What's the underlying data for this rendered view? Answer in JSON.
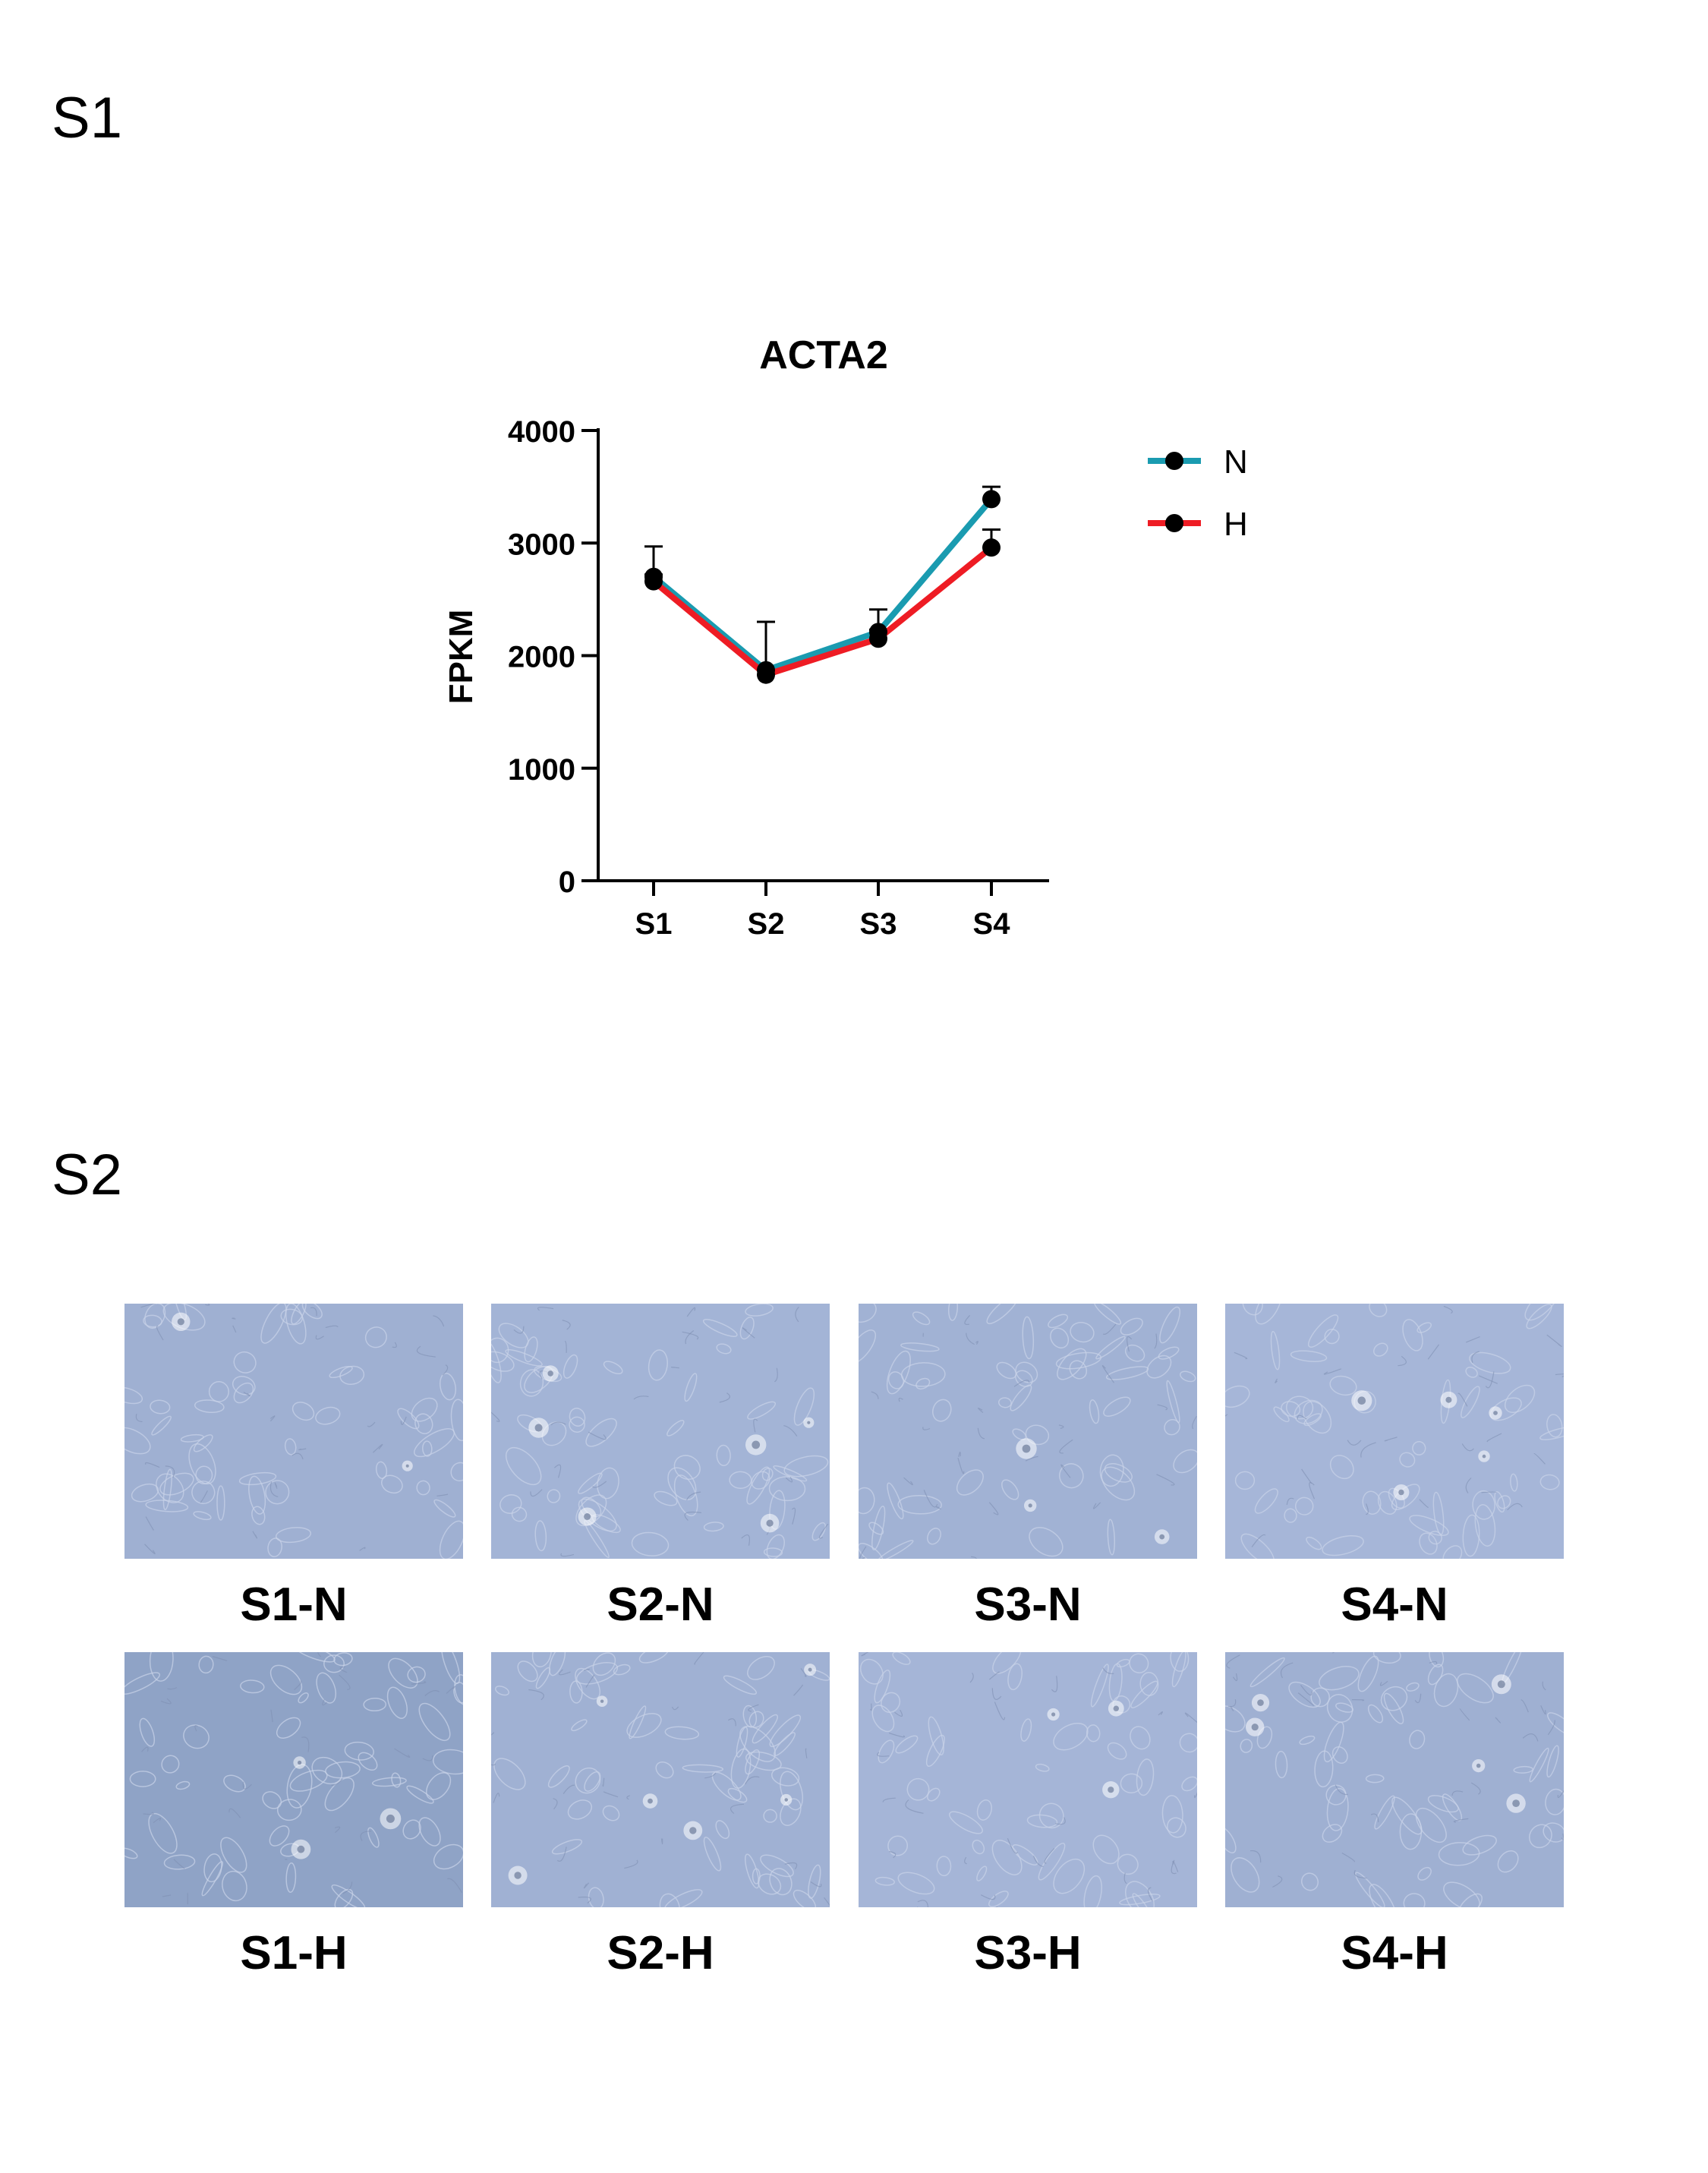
{
  "panels": {
    "s1_label": "S1",
    "s2_label": "S2"
  },
  "chart_data": {
    "type": "line",
    "title": "ACTA2",
    "xlabel": "",
    "ylabel": "FPKM",
    "categories": [
      "S1",
      "S2",
      "S3",
      "S4"
    ],
    "ylim": [
      0,
      4000
    ],
    "yticks": [
      0,
      1000,
      2000,
      3000,
      4000
    ],
    "legend_position": "top-right",
    "grid": false,
    "series": [
      {
        "name": "N",
        "color": "#1a9bb0",
        "values": [
          2700,
          1870,
          2210,
          3390
        ],
        "error": [
          270,
          430,
          200,
          110
        ]
      },
      {
        "name": "H",
        "color": "#ee1c24",
        "values": [
          2660,
          1830,
          2150,
          2960
        ],
        "error": [
          60,
          50,
          80,
          160
        ]
      }
    ]
  },
  "micrographs": [
    {
      "label": "S1-N",
      "tint": "#9fb0d2"
    },
    {
      "label": "S2-N",
      "tint": "#a3b4d6"
    },
    {
      "label": "S3-N",
      "tint": "#a1b2d4"
    },
    {
      "label": "S4-N",
      "tint": "#a6b6d8"
    },
    {
      "label": "S1-H",
      "tint": "#8fa3c6"
    },
    {
      "label": "S2-H",
      "tint": "#a0b1d3"
    },
    {
      "label": "S3-H",
      "tint": "#a5b5d7"
    },
    {
      "label": "S4-H",
      "tint": "#9fb0d2"
    }
  ]
}
